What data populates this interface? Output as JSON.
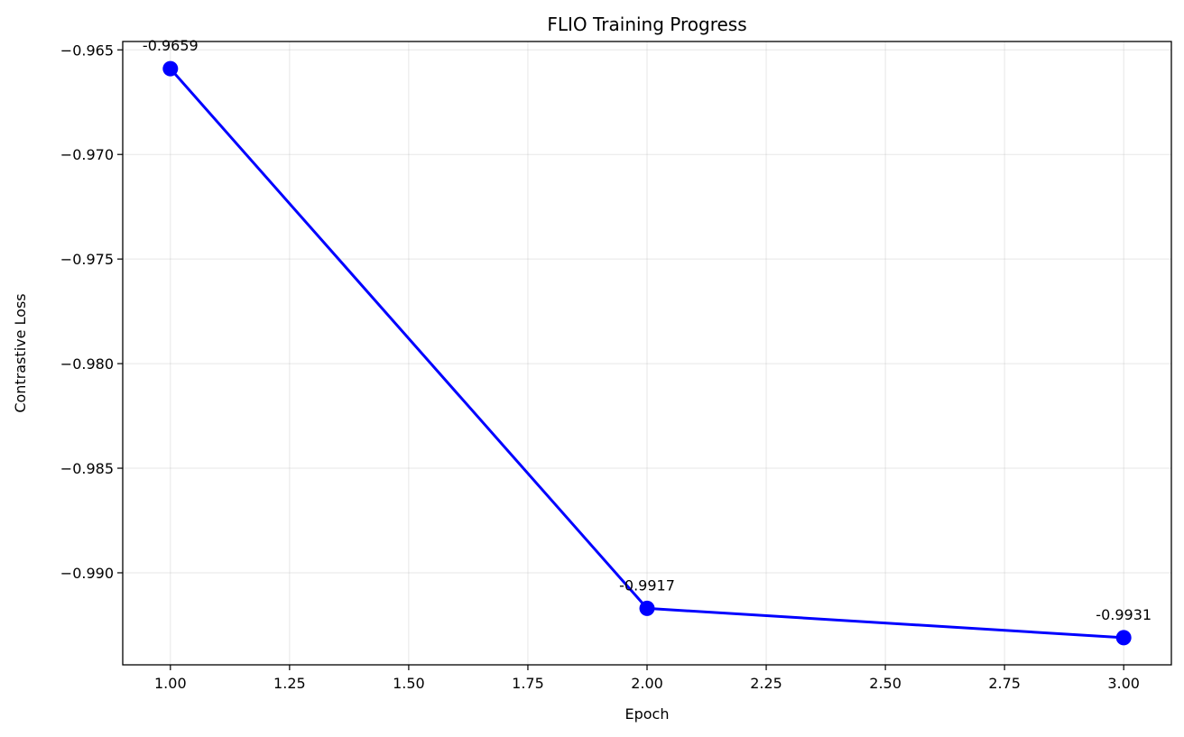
{
  "chart_data": {
    "type": "line",
    "title": "FLIO Training Progress",
    "xlabel": "Epoch",
    "ylabel": "Contrastive Loss",
    "x": [
      1,
      2,
      3
    ],
    "series": [
      {
        "values": [
          -0.9659,
          -0.9917,
          -0.9931
        ],
        "color": "#0000ff"
      }
    ],
    "data_labels": [
      "-0.9659",
      "-0.9917",
      "-0.9931"
    ],
    "xlim": [
      0.9,
      3.1
    ],
    "ylim": [
      -0.9944,
      -0.9646
    ],
    "xticks": [
      1.0,
      1.25,
      1.5,
      1.75,
      2.0,
      2.25,
      2.5,
      2.75,
      3.0
    ],
    "xtick_labels": [
      "1.00",
      "1.25",
      "1.50",
      "1.75",
      "2.00",
      "2.25",
      "2.50",
      "2.75",
      "3.00"
    ],
    "yticks": [
      -0.965,
      -0.97,
      -0.975,
      -0.98,
      -0.985,
      -0.99
    ],
    "ytick_labels": [
      "−0.965",
      "−0.970",
      "−0.975",
      "−0.980",
      "−0.985",
      "−0.990"
    ],
    "grid": true,
    "marker": "circle"
  }
}
